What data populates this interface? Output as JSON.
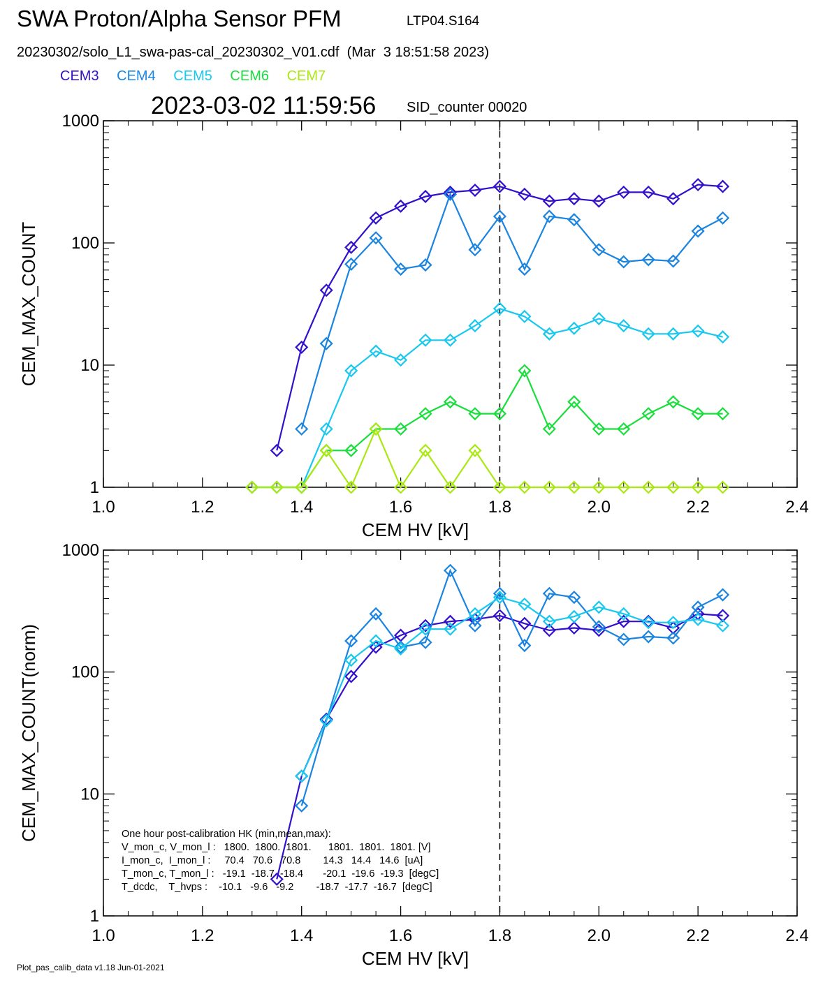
{
  "header": {
    "title": "SWA Proton/Alpha Sensor PFM",
    "tag": "LTP04.S164",
    "subtitle": "20230302/solo_L1_swa-pas-cal_20230302_V01.cdf  (Mar  3 18:51:58 2023)",
    "timestamp": "2023-03-02 11:59:56",
    "sid_counter": "SID_counter 00020"
  },
  "legend": [
    {
      "name": "CEM3",
      "color": "#3311cc"
    },
    {
      "name": "CEM4",
      "color": "#1a84e0"
    },
    {
      "name": "CEM5",
      "color": "#18c8ee"
    },
    {
      "name": "CEM6",
      "color": "#19de3c"
    },
    {
      "name": "CEM7",
      "color": "#aae812"
    }
  ],
  "hk_box": {
    "lines": [
      "One hour post-calibration HK (min,mean,max):",
      "V_mon_c, V_mon_l :   1800.  1800.  1801.      1801.  1801.  1801. [V]",
      "I_mon_c,  I_mon_l :     70.4   70.6   70.8        14.3   14.4   14.6  [uA]",
      "T_mon_c, T_mon_l :   -19.1  -18.7  -18.4       -20.1  -19.6  -19.3  [degC]",
      "T_dcdc,    T_hvps :    -10.1   -9.6   -9.2        -18.7  -17.7  -16.7  [degC]"
    ]
  },
  "footer": "Plot_pas_calib_data v1.18 Jun-01-2021",
  "chart_data": [
    {
      "type": "line",
      "xlabel": "CEM HV [kV]",
      "ylabel": "CEM_MAX_COUNT",
      "xlim": [
        1.0,
        2.4
      ],
      "ylim": [
        1,
        1000
      ],
      "yscale": "log",
      "xticks": [
        "1.0",
        "1.2",
        "1.4",
        "1.6",
        "1.8",
        "2.0",
        "2.2",
        "2.4"
      ],
      "yticks": [
        "1",
        "10",
        "100",
        "1000"
      ],
      "vline": 1.8,
      "marker": "diamond",
      "series": [
        {
          "name": "CEM3",
          "color": "#3311cc",
          "x": [
            1.35,
            1.4,
            1.45,
            1.5,
            1.55,
            1.6,
            1.65,
            1.7,
            1.75,
            1.8,
            1.85,
            1.9,
            1.95,
            2.0,
            2.05,
            2.1,
            2.15,
            2.2,
            2.25
          ],
          "y": [
            2,
            14,
            41,
            92,
            160,
            200,
            240,
            260,
            270,
            290,
            250,
            220,
            230,
            220,
            260,
            260,
            230,
            300,
            290
          ]
        },
        {
          "name": "CEM4",
          "color": "#1a84e0",
          "x": [
            1.4,
            1.45,
            1.5,
            1.55,
            1.6,
            1.65,
            1.7,
            1.75,
            1.8,
            1.85,
            1.9,
            1.95,
            2.0,
            2.05,
            2.1,
            2.15,
            2.2,
            2.25
          ],
          "y": [
            3,
            15,
            67,
            110,
            61,
            66,
            250,
            88,
            165,
            61,
            165,
            155,
            88,
            70,
            73,
            71,
            125,
            160
          ]
        },
        {
          "name": "CEM5",
          "color": "#18c8ee",
          "x": [
            1.3,
            1.35,
            1.4,
            1.45,
            1.5,
            1.55,
            1.6,
            1.65,
            1.7,
            1.75,
            1.8,
            1.85,
            1.9,
            1.95,
            2.0,
            2.05,
            2.1,
            2.15,
            2.2,
            2.25
          ],
          "y": [
            1,
            1,
            1,
            3,
            9,
            13,
            11,
            16,
            16,
            21,
            29,
            25,
            18,
            20,
            24,
            21,
            18,
            18,
            19,
            17
          ]
        },
        {
          "name": "CEM6",
          "color": "#19de3c",
          "x": [
            1.3,
            1.35,
            1.4,
            1.45,
            1.5,
            1.55,
            1.6,
            1.65,
            1.7,
            1.75,
            1.8,
            1.85,
            1.9,
            1.95,
            2.0,
            2.05,
            2.1,
            2.15,
            2.2,
            2.25
          ],
          "y": [
            1,
            1,
            1,
            2,
            2,
            3,
            3,
            4,
            5,
            4,
            4,
            9,
            3,
            5,
            3,
            3,
            4,
            5,
            4,
            4
          ]
        },
        {
          "name": "CEM7",
          "color": "#aae812",
          "x": [
            1.3,
            1.35,
            1.4,
            1.45,
            1.5,
            1.55,
            1.6,
            1.65,
            1.7,
            1.75,
            1.8,
            1.85,
            1.9,
            1.95,
            2.0,
            2.05,
            2.1,
            2.15,
            2.2,
            2.25
          ],
          "y": [
            1,
            1,
            1,
            2,
            1,
            3,
            1,
            2,
            1,
            2,
            1,
            1,
            1,
            1,
            1,
            1,
            1,
            1,
            1,
            1
          ]
        }
      ]
    },
    {
      "type": "line",
      "xlabel": "CEM HV [kV]",
      "ylabel": "CEM_MAX_COUNT(norm)",
      "xlim": [
        1.0,
        2.4
      ],
      "ylim": [
        1,
        1000
      ],
      "yscale": "log",
      "xticks": [
        "1.0",
        "1.2",
        "1.4",
        "1.6",
        "1.8",
        "2.0",
        "2.2",
        "2.4"
      ],
      "yticks": [
        "1",
        "10",
        "100",
        "1000"
      ],
      "vline": 1.8,
      "marker": "diamond",
      "series": [
        {
          "name": "CEM3",
          "color": "#3311cc",
          "x": [
            1.35,
            1.4,
            1.45,
            1.5,
            1.55,
            1.6,
            1.65,
            1.7,
            1.75,
            1.8,
            1.85,
            1.9,
            1.95,
            2.0,
            2.05,
            2.1,
            2.15,
            2.2,
            2.25
          ],
          "y": [
            2,
            14,
            41,
            92,
            160,
            200,
            240,
            260,
            270,
            290,
            250,
            220,
            230,
            220,
            260,
            260,
            230,
            300,
            290
          ]
        },
        {
          "name": "CEM4",
          "color": "#1a84e0",
          "x": [
            1.4,
            1.45,
            1.5,
            1.55,
            1.6,
            1.65,
            1.7,
            1.75,
            1.8,
            1.85,
            1.9,
            1.95,
            2.0,
            2.05,
            2.1,
            2.15,
            2.2,
            2.25
          ],
          "y": [
            8,
            40,
            180,
            300,
            160,
            175,
            680,
            240,
            440,
            165,
            440,
            410,
            235,
            185,
            195,
            190,
            340,
            430
          ]
        },
        {
          "name": "CEM5",
          "color": "#18c8ee",
          "x": [
            1.4,
            1.45,
            1.5,
            1.55,
            1.6,
            1.65,
            1.7,
            1.75,
            1.8,
            1.85,
            1.9,
            1.95,
            2.0,
            2.05,
            2.1,
            2.15,
            2.2,
            2.25
          ],
          "y": [
            14,
            40,
            125,
            180,
            155,
            225,
            225,
            300,
            410,
            360,
            260,
            285,
            340,
            300,
            255,
            255,
            270,
            240
          ]
        }
      ]
    }
  ]
}
